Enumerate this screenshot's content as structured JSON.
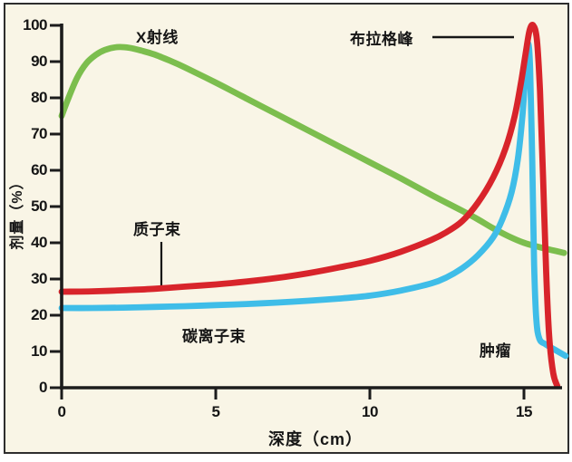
{
  "chart_data": {
    "type": "line",
    "title": "",
    "xlabel": "深度（cm）",
    "ylabel": "剂量（%）",
    "xlim": [
      0,
      16.5
    ],
    "ylim": [
      0,
      100
    ],
    "xticks": [
      0,
      5,
      10,
      15
    ],
    "yticks": [
      0,
      10,
      20,
      30,
      40,
      50,
      60,
      70,
      80,
      90,
      100
    ],
    "grid": false,
    "legend_position": "inline-labels",
    "axis_color": "#1c1c1c",
    "background_color": "#f9f5e6",
    "series": [
      {
        "name": "x-ray",
        "label": "X射线",
        "color": "#7cbe4e",
        "points": [
          [
            0,
            75
          ],
          [
            0.2,
            79.5
          ],
          [
            0.5,
            85.5
          ],
          [
            0.8,
            89.5
          ],
          [
            1.1,
            91.8
          ],
          [
            1.4,
            93.2
          ],
          [
            1.8,
            94
          ],
          [
            2.2,
            93.8
          ],
          [
            2.6,
            93
          ],
          [
            3,
            92
          ],
          [
            3.5,
            90.3
          ],
          [
            4,
            88.4
          ],
          [
            5,
            84.2
          ],
          [
            6,
            79.8
          ],
          [
            7,
            75.4
          ],
          [
            8,
            71
          ],
          [
            9,
            66.6
          ],
          [
            10,
            62.2
          ],
          [
            11,
            57.8
          ],
          [
            12,
            53.2
          ],
          [
            13,
            48.8
          ],
          [
            13.5,
            46.5
          ],
          [
            14,
            44
          ],
          [
            14.5,
            41.8
          ],
          [
            15,
            40
          ],
          [
            15.5,
            38.8
          ],
          [
            16,
            37.8
          ],
          [
            16.3,
            37.2
          ]
        ]
      },
      {
        "name": "carbon-ion-beam",
        "label": "碳离子束",
        "color": "#3fbde8",
        "points": [
          [
            0,
            22
          ],
          [
            1,
            22
          ],
          [
            2,
            22.1
          ],
          [
            3,
            22.3
          ],
          [
            4,
            22.5
          ],
          [
            5,
            22.8
          ],
          [
            6,
            23.1
          ],
          [
            7,
            23.5
          ],
          [
            8,
            24
          ],
          [
            9,
            24.6
          ],
          [
            10,
            25.4
          ],
          [
            11,
            26.8
          ],
          [
            12,
            28.8
          ],
          [
            12.5,
            30.5
          ],
          [
            13,
            33
          ],
          [
            13.5,
            36.5
          ],
          [
            14,
            41.5
          ],
          [
            14.3,
            46.5
          ],
          [
            14.6,
            54
          ],
          [
            14.8,
            63
          ],
          [
            14.95,
            75
          ],
          [
            15.05,
            87
          ],
          [
            15.13,
            95
          ],
          [
            15.2,
            88
          ],
          [
            15.27,
            62
          ],
          [
            15.33,
            34
          ],
          [
            15.4,
            19
          ],
          [
            15.5,
            13.5
          ],
          [
            15.7,
            12
          ],
          [
            16,
            10.5
          ],
          [
            16.35,
            8.8
          ]
        ]
      },
      {
        "name": "proton-beam",
        "label": "质子束",
        "color": "#d8242b",
        "points": [
          [
            0,
            26.5
          ],
          [
            1,
            26.6
          ],
          [
            2,
            26.9
          ],
          [
            3,
            27.3
          ],
          [
            4,
            27.9
          ],
          [
            5,
            28.5
          ],
          [
            6,
            29.3
          ],
          [
            7,
            30.3
          ],
          [
            8,
            31.6
          ],
          [
            9,
            33.2
          ],
          [
            10,
            35
          ],
          [
            11,
            37.5
          ],
          [
            12,
            40.8
          ],
          [
            12.5,
            43
          ],
          [
            13,
            46
          ],
          [
            13.5,
            51
          ],
          [
            14,
            58
          ],
          [
            14.4,
            66
          ],
          [
            14.7,
            75
          ],
          [
            14.9,
            84
          ],
          [
            15.05,
            92
          ],
          [
            15.18,
            98.5
          ],
          [
            15.3,
            100
          ],
          [
            15.42,
            96
          ],
          [
            15.52,
            82
          ],
          [
            15.62,
            58
          ],
          [
            15.72,
            32
          ],
          [
            15.82,
            14
          ],
          [
            15.95,
            4
          ],
          [
            16.08,
            0.5
          ]
        ]
      }
    ],
    "annotations": [
      {
        "name": "bragg-peak",
        "label": "布拉格峰",
        "points_to": "peak of proton/carbon curves at ~15.2 cm, 100%"
      },
      {
        "name": "tumor",
        "label": "肿瘤"
      }
    ]
  }
}
